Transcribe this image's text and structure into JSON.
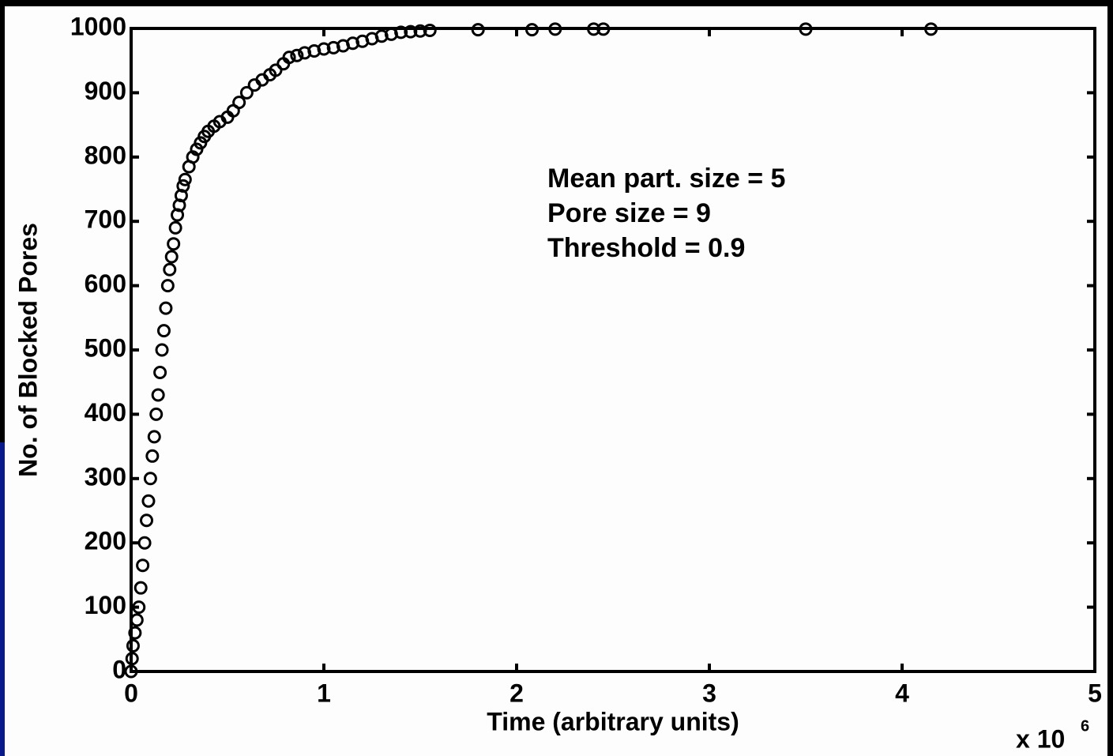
{
  "chart_data": {
    "type": "scatter",
    "xlabel": "Time (arbitrary units)",
    "ylabel": "No. of Blocked Pores",
    "x_multiplier": "x 10",
    "x_multiplier_exponent": "6",
    "annotations": [
      "Mean part. size = 5",
      "Pore size = 9",
      "Threshold = 0.9"
    ],
    "color": "#000000",
    "xlim": [
      0,
      5
    ],
    "ylim": [
      0,
      1000
    ],
    "xticks": [
      0,
      1,
      2,
      3,
      4,
      5
    ],
    "yticks": [
      0,
      100,
      200,
      300,
      400,
      500,
      600,
      700,
      800,
      900,
      1000
    ],
    "x": [
      0,
      0.005,
      0.01,
      0.02,
      0.03,
      0.04,
      0.05,
      0.06,
      0.07,
      0.08,
      0.09,
      0.1,
      0.11,
      0.12,
      0.13,
      0.14,
      0.15,
      0.16,
      0.17,
      0.18,
      0.19,
      0.2,
      0.21,
      0.22,
      0.23,
      0.24,
      0.25,
      0.26,
      0.27,
      0.28,
      0.3,
      0.32,
      0.34,
      0.36,
      0.38,
      0.4,
      0.43,
      0.46,
      0.5,
      0.53,
      0.56,
      0.6,
      0.64,
      0.68,
      0.72,
      0.75,
      0.79,
      0.82,
      0.86,
      0.9,
      0.95,
      1.0,
      1.05,
      1.1,
      1.15,
      1.2,
      1.25,
      1.3,
      1.35,
      1.4,
      1.45,
      1.5,
      1.55,
      1.8,
      2.08,
      2.2,
      2.4,
      2.45,
      3.5,
      4.15
    ],
    "values": [
      0,
      20,
      40,
      60,
      80,
      100,
      130,
      165,
      200,
      235,
      265,
      300,
      335,
      365,
      400,
      430,
      465,
      500,
      530,
      565,
      600,
      625,
      645,
      665,
      690,
      710,
      725,
      740,
      755,
      765,
      785,
      800,
      812,
      822,
      832,
      840,
      848,
      855,
      862,
      872,
      885,
      900,
      912,
      920,
      928,
      935,
      945,
      955,
      958,
      962,
      965,
      968,
      970,
      973,
      977,
      980,
      984,
      988,
      991,
      994,
      995,
      996,
      997,
      998,
      998,
      999,
      999,
      999,
      999,
      999
    ]
  }
}
